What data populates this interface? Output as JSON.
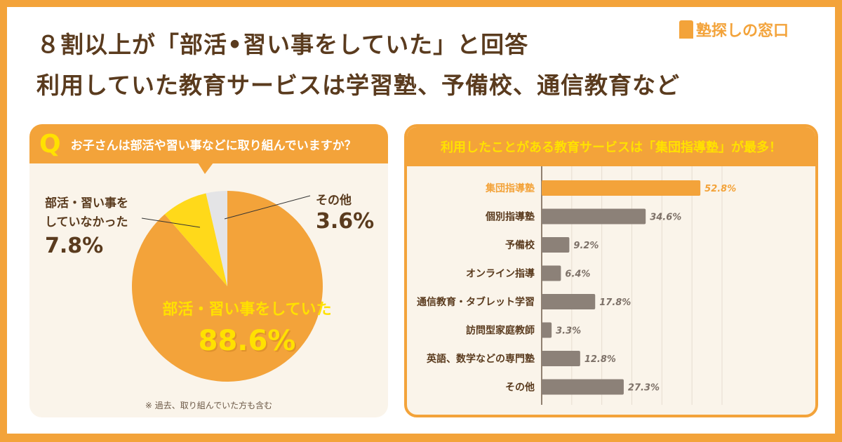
{
  "logo": "塾探しの窓口",
  "headline": {
    "line1": "８割以上が「部活•習い事をしていた」と回答",
    "line2": "利用していた教育サービスは学習塾、予備校、通信教育など"
  },
  "colors": {
    "frame": "#f3a33a",
    "orange": "#f3a33a",
    "yellow": "#ffd91a",
    "gray": "#e4e4e6",
    "bar": "#8c8178",
    "text": "#5a3b1e"
  },
  "chart_data": [
    {
      "type": "pie",
      "question_mark": "Q",
      "title": "お子さんは部活や習い事などに取り組んでいますか？",
      "slices": [
        {
          "label": "部活・習い事をしていた",
          "value": 88.6,
          "display": "88.6%",
          "color": "#f3a33a"
        },
        {
          "label": "部活・習い事をしていなかった",
          "label_lines": [
            "部活・習い事を",
            "していなかった"
          ],
          "value": 7.8,
          "display": "7.8%",
          "color": "#ffd91a"
        },
        {
          "label": "その他",
          "value": 3.6,
          "display": "3.6%",
          "color": "#e4e4e6"
        }
      ],
      "note": "※ 過去、取り組んでいた方も含む"
    },
    {
      "type": "bar",
      "orientation": "horizontal",
      "title": "利用したことがある教育サービスは「集団指導塾」が最多！",
      "categories": [
        "集団指導塾",
        "個別指導塾",
        "予備校",
        "オンライン指導",
        "通信教育・タブレット学習",
        "訪問型家庭教師",
        "英語、数学などの専門塾",
        "その他"
      ],
      "values": [
        52.8,
        34.6,
        9.2,
        6.4,
        17.8,
        3.3,
        12.8,
        27.3
      ],
      "labels": [
        "52.8%",
        "34.6%",
        "9.2%",
        "6.4%",
        "17.8%",
        "3.3%",
        "12.8%",
        "27.3%"
      ],
      "highlight_index": 0,
      "xlim": [
        0,
        60
      ],
      "grid": true
    }
  ]
}
